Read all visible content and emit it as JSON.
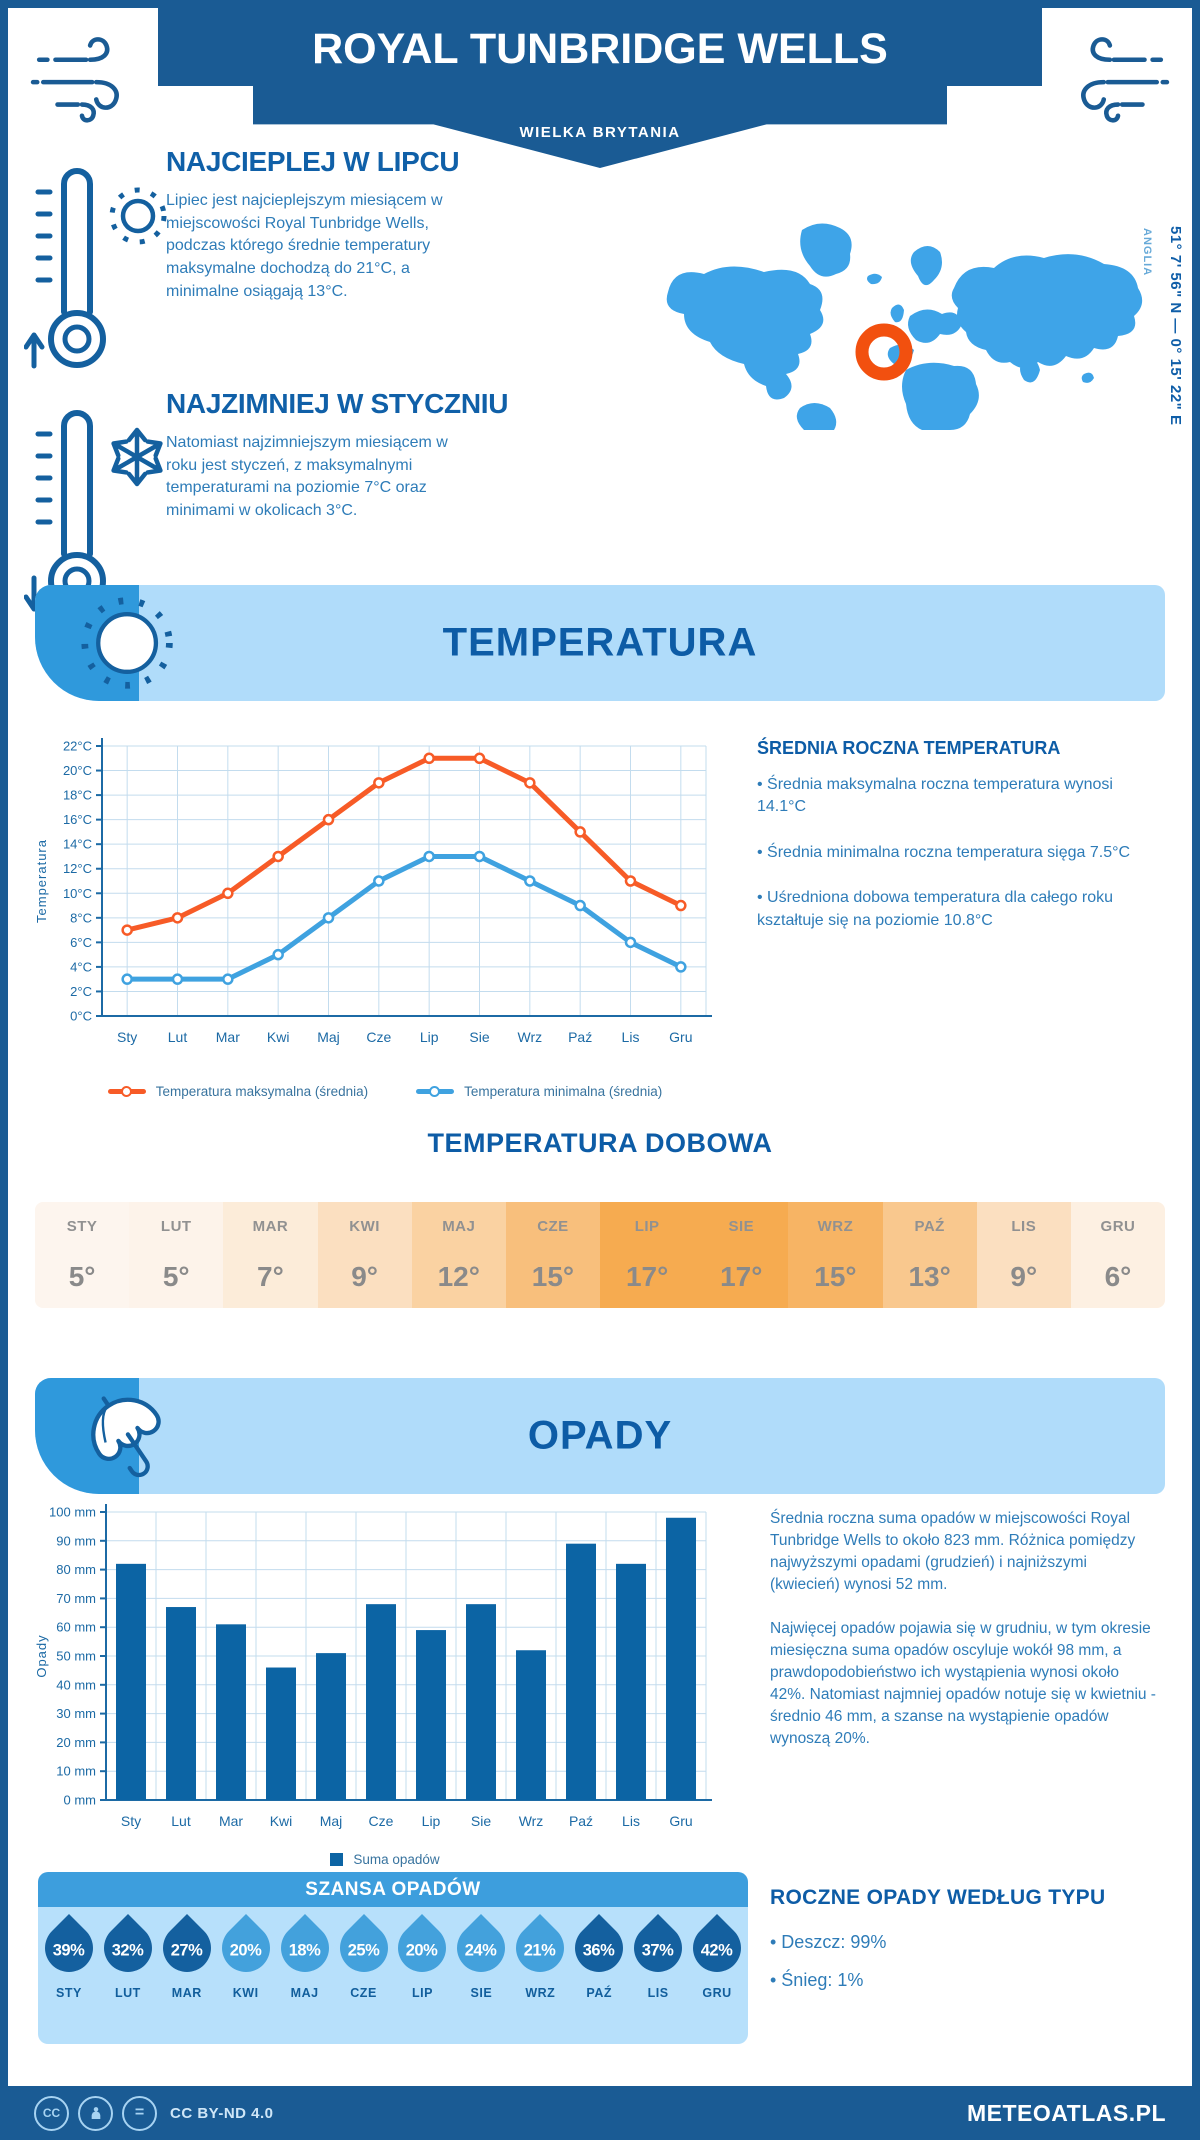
{
  "header": {
    "title": "ROYAL TUNBRIDGE WELLS",
    "subtitle": "WIELKA BRYTANIA"
  },
  "warmest": {
    "heading": "NAJCIEPLEJ W LIPCU",
    "body": "Lipiec jest najcieplejszym miesiącem w miejscowości Royal Tunbridge Wells, podczas którego średnie temperatury maksymalne dochodzą do 21°C, a minimalne osiągają 13°C."
  },
  "coldest": {
    "heading": "NAJZIMNIEJ W STYCZNIU",
    "body": "Natomiast najzimniejszym miesiącem w roku jest styczeń, z maksymalnymi temperaturami na poziomie 7°C oraz minimami w okolicach 3°C."
  },
  "map": {
    "coordinates": "51° 7' 56\" N — 0° 15' 22\" E",
    "region": "ANGLIA"
  },
  "temperature": {
    "banner": "TEMPERATURA",
    "stats_heading": "ŚREDNIA ROCZNA TEMPERATURA",
    "stats": [
      "• Średnia maksymalna roczna temperatura wynosi 14.1°C",
      "• Średnia minimalna roczna temperatura sięga 7.5°C",
      "• Uśredniona dobowa temperatura dla całego roku kształtuje się na poziomie 10.8°C"
    ],
    "daily_heading": "TEMPERATURA DOBOWA"
  },
  "daily_table": {
    "months": [
      "STY",
      "LUT",
      "MAR",
      "KWI",
      "MAJ",
      "CZE",
      "LIP",
      "SIE",
      "WRZ",
      "PAŹ",
      "LIS",
      "GRU"
    ],
    "values": [
      "5°",
      "5°",
      "7°",
      "9°",
      "12°",
      "15°",
      "17°",
      "17°",
      "15°",
      "13°",
      "9°",
      "6°"
    ],
    "cell_colors": [
      "#fdf5ee",
      "#fdf3ea",
      "#fcecd9",
      "#fbdfc0",
      "#fad2a2",
      "#f8bf7c",
      "#f6ab50",
      "#f6ab50",
      "#f7b464",
      "#f9c88e",
      "#fbdfc0",
      "#fdf0e2"
    ]
  },
  "precipitation": {
    "banner": "OPADY",
    "para1": "Średnia roczna suma opadów w miejscowości Royal Tunbridge Wells to około 823 mm. Różnica pomiędzy najwyższymi opadami (grudzień) i najniższymi (kwiecień) wynosi 52 mm.",
    "para2": "Najwięcej opadów pojawia się w grudniu, w tym okresie miesięczna suma opadów oscyluje wokół 98 mm, a prawdopodobieństwo ich wystąpienia wynosi około 42%. Natomiast najmniej opadów notuje się w kwietniu - średnio 46 mm, a szanse na wystąpienie opadów wynoszą 20%.",
    "type_heading": "ROCZNE OPADY WEDŁUG TYPU",
    "types": [
      "• Deszcz: 99%",
      "• Śnieg: 1%"
    ]
  },
  "precip_chance": {
    "title": "SZANSA OPADÓW",
    "months": [
      "STY",
      "LUT",
      "MAR",
      "KWI",
      "MAJ",
      "CZE",
      "LIP",
      "SIE",
      "WRZ",
      "PAŹ",
      "LIS",
      "GRU"
    ],
    "values": [
      "39%",
      "32%",
      "27%",
      "20%",
      "18%",
      "25%",
      "20%",
      "24%",
      "21%",
      "36%",
      "37%",
      "42%"
    ],
    "dark": [
      true,
      true,
      true,
      false,
      false,
      false,
      false,
      false,
      false,
      true,
      true,
      true
    ],
    "colors": {
      "dark": "#14609f",
      "light": "#43a1dc"
    }
  },
  "footer": {
    "license": "CC BY-ND 4.0",
    "brand": "METEOATLAS.PL"
  },
  "chart_data": [
    {
      "type": "line",
      "title": "",
      "categories": [
        "Sty",
        "Lut",
        "Mar",
        "Kwi",
        "Maj",
        "Cze",
        "Lip",
        "Sie",
        "Wrz",
        "Paź",
        "Lis",
        "Gru"
      ],
      "series": [
        {
          "name": "Temperatura maksymalna (średnia)",
          "color": "#f75b27",
          "values": [
            7,
            8,
            10,
            13,
            16,
            19,
            21,
            21,
            19,
            15,
            11,
            9
          ]
        },
        {
          "name": "Temperatura minimalna (średnia)",
          "color": "#3fa2e0",
          "values": [
            3,
            3,
            3,
            5,
            8,
            11,
            13,
            13,
            11,
            9,
            6,
            4
          ]
        }
      ],
      "xlabel": "",
      "ylabel": "Temperatura",
      "ylim": [
        0,
        22
      ],
      "ytick_step": 2,
      "ytick_suffix": "°C",
      "grid": true,
      "legend_position": "bottom"
    },
    {
      "type": "bar",
      "title": "",
      "categories": [
        "Sty",
        "Lut",
        "Mar",
        "Kwi",
        "Maj",
        "Cze",
        "Lip",
        "Sie",
        "Wrz",
        "Paź",
        "Lis",
        "Gru"
      ],
      "series": [
        {
          "name": "Suma opadów",
          "color": "#0c64a4",
          "values": [
            82,
            67,
            61,
            46,
            51,
            68,
            59,
            68,
            52,
            89,
            82,
            98
          ]
        }
      ],
      "xlabel": "",
      "ylabel": "Opady",
      "ylim": [
        0,
        100
      ],
      "ytick_step": 10,
      "ytick_suffix": " mm",
      "grid": true,
      "legend_position": "bottom"
    }
  ]
}
